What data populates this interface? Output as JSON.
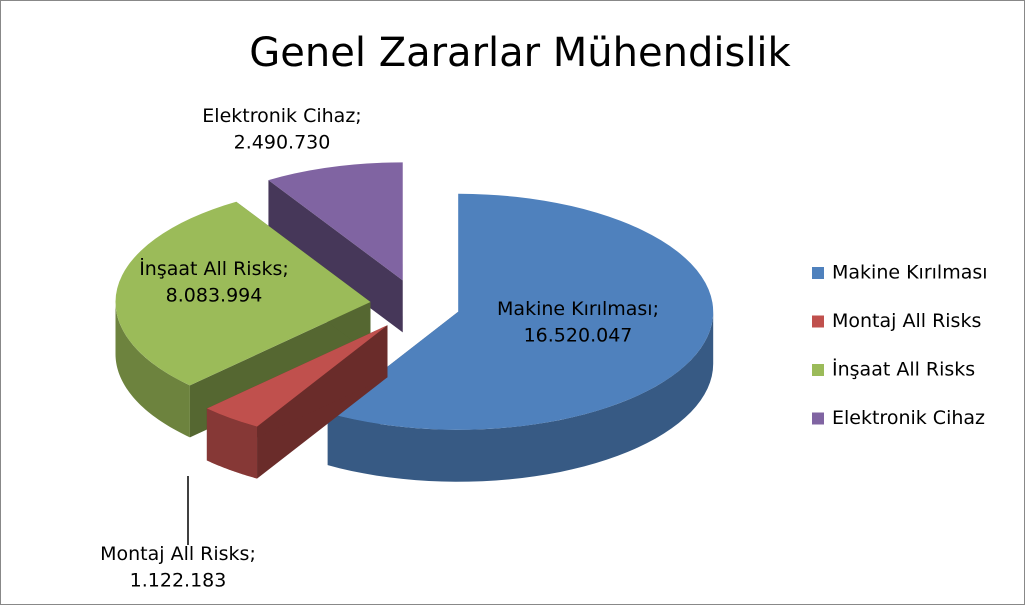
{
  "chart_data": {
    "type": "pie",
    "title": "Genel Zararlar Mühendislik",
    "categories": [
      "Makine Kırılması",
      "Montaj All Risks",
      "İnşaat All Risks",
      "Elektronik Cihaz"
    ],
    "values": [
      16520047,
      1122183,
      8083994,
      2490730
    ],
    "value_labels": [
      "16.520.047",
      "1.122.183",
      "8.083.994",
      "2.490.730"
    ],
    "label_separator": ";",
    "colors": [
      "#4f81bd",
      "#c0504d",
      "#9bbb59",
      "#8064a2"
    ],
    "legend": "right",
    "exploded": true,
    "three_d": true
  }
}
